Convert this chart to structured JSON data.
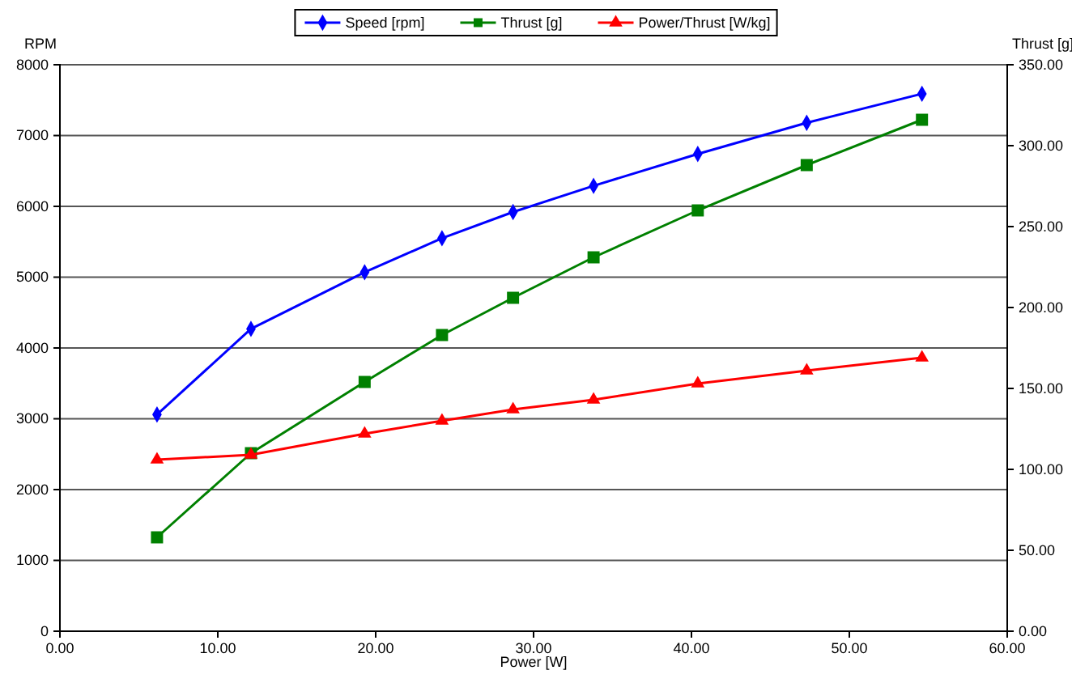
{
  "chart_data": {
    "type": "line",
    "xlabel": "Power [W]",
    "ylabel": "RPM",
    "y2label": "Thrust [g]",
    "x": [
      6.15,
      12.1,
      19.3,
      24.2,
      28.7,
      33.8,
      40.4,
      47.3,
      54.6
    ],
    "series": [
      {
        "name": "Speed [rpm]",
        "color": "#0000ff",
        "marker": "diamond",
        "values": [
          3060,
          4270,
          5070,
          5550,
          5920,
          6290,
          6740,
          7180,
          7590
        ]
      },
      {
        "name": "Thrust [g]",
        "color": "#008000",
        "marker": "square",
        "axis": "y2",
        "values": [
          58,
          110,
          154,
          183,
          206,
          231,
          260,
          288,
          316
        ]
      },
      {
        "name": "Power/Thrust [W/kg]",
        "color": "#ff0000",
        "marker": "triangle",
        "axis": "y2",
        "values": [
          106,
          109,
          122,
          130,
          137,
          143,
          153,
          161,
          169
        ]
      }
    ],
    "xlim": [
      0,
      60
    ],
    "xticks": [
      {
        "value": 0,
        "label": "0.00"
      },
      {
        "value": 10,
        "label": "10.00"
      },
      {
        "value": 20,
        "label": "20.00"
      },
      {
        "value": 30,
        "label": "30.00"
      },
      {
        "value": 40,
        "label": "40.00"
      },
      {
        "value": 50,
        "label": "50.00"
      },
      {
        "value": 60,
        "label": "60.00"
      }
    ],
    "ylim": [
      0,
      8000
    ],
    "yticks": [
      0,
      1000,
      2000,
      3000,
      4000,
      5000,
      6000,
      7000,
      8000
    ],
    "y2lim": [
      0,
      350
    ],
    "y2ticks": [
      {
        "value": 0,
        "label": "0.00"
      },
      {
        "value": 50,
        "label": "50.00"
      },
      {
        "value": 100,
        "label": "100.00"
      },
      {
        "value": 150,
        "label": "150.00"
      },
      {
        "value": 200,
        "label": "200.00"
      },
      {
        "value": 250,
        "label": "250.00"
      },
      {
        "value": 300,
        "label": "300.00"
      },
      {
        "value": 350,
        "label": "350.00"
      }
    ],
    "grid": "y",
    "legend": "top",
    "line_style": "solid"
  }
}
